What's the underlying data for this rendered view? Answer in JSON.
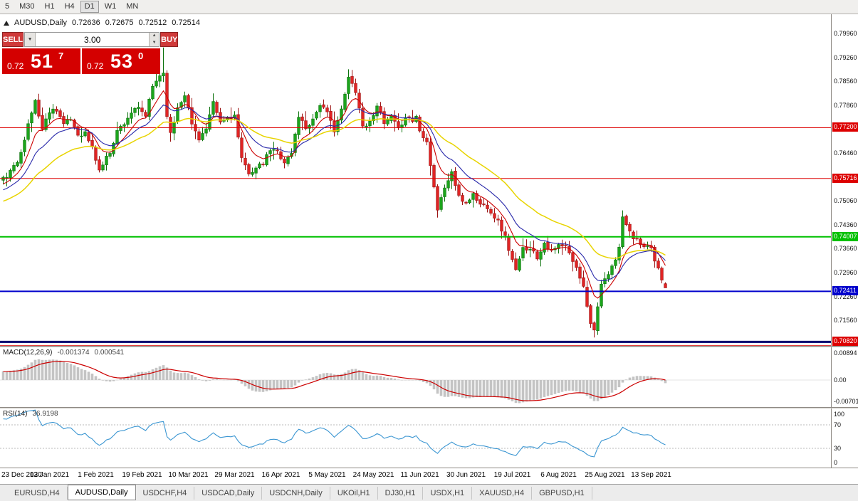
{
  "window": {
    "title": "AUDUSD,Daily"
  },
  "toolbar": {
    "timeframes": [
      {
        "label": "5",
        "active": false
      },
      {
        "label": "M30",
        "active": false
      },
      {
        "label": "H1",
        "active": false
      },
      {
        "label": "H4",
        "active": false
      },
      {
        "label": "D1",
        "active": true
      },
      {
        "label": "W1",
        "active": false
      },
      {
        "label": "MN",
        "active": false
      }
    ]
  },
  "chart_header": {
    "symbol_text": "AUDUSD,Daily",
    "open": "0.72636",
    "high": "0.72675",
    "low": "0.72512",
    "close": "0.72514"
  },
  "trade_panel": {
    "sell_label": "SELL",
    "buy_label": "BUY",
    "volume": "3.00",
    "dropdown_icon": "▼",
    "step_up_icon": "▲",
    "step_down_icon": "▼",
    "sell_price": {
      "base": "0.72",
      "big": "51",
      "sup": "7"
    },
    "buy_price": {
      "base": "0.72",
      "big": "53",
      "sup": "0"
    }
  },
  "colors": {
    "up": "#1ca51c",
    "up_dark": "#0c720c",
    "down": "#e02424",
    "down_dark": "#9c1414",
    "macd_hist": "#c4c4c4",
    "macd_signal": "#cc0000",
    "rsi_line": "#3b96d2",
    "accent_red": "#d40000"
  },
  "chart_data": {
    "type": "candlestick",
    "title": "AUDUSD,Daily",
    "symbol": "AUDUSD",
    "timeframe": "Daily",
    "num_bars": 187,
    "bars_per_label": 13,
    "ylim": [
      0.706,
      0.805
    ],
    "price_axis": {
      "top_price": 0.7996,
      "tick_step": 0.007,
      "ticks": [
        "0.79960",
        "0.79260",
        "0.78560",
        "0.77860",
        "0.77160",
        "0.76460",
        "0.75760",
        "0.75060",
        "0.74360",
        "0.73660",
        "0.72960",
        "0.72260",
        "0.71560"
      ]
    },
    "x_labels": [
      "23 Dec 2020",
      "13 Jan 2021",
      "1 Feb 2021",
      "19 Feb 2021",
      "10 Mar 2021",
      "29 Mar 2021",
      "16 Apr 2021",
      "5 May 2021",
      "24 May 2021",
      "11 Jun 2021",
      "30 Jun 2021",
      "19 Jul 2021",
      "6 Aug 2021",
      "25 Aug 2021",
      "13 Sep 2021"
    ],
    "hlines": [
      {
        "price": 0.772,
        "label": "0.77200",
        "color": "#dd0000",
        "width": 1
      },
      {
        "price": 0.75716,
        "label": "0.75716",
        "color": "#dd0000",
        "width": 1
      },
      {
        "price": 0.74007,
        "label": "0.74007",
        "color": "#00c000",
        "width": 2
      },
      {
        "price": 0.72411,
        "label": "0.72411",
        "color": "#0000cc",
        "width": 2
      },
      {
        "price": 0.7093,
        "label": "",
        "color": "#000070",
        "width": 3
      },
      {
        "price": 0.7082,
        "label": "0.70820",
        "color": "#dd0000",
        "width": 1
      }
    ],
    "moving_averages": [
      {
        "period": 8,
        "color": "#cc0000",
        "width": 1.1
      },
      {
        "period": 16,
        "color": "#2828aa",
        "width": 1.1
      },
      {
        "period": 34,
        "color": "#e8d400",
        "width": 1.5
      }
    ],
    "warmup": {
      "bars": 40,
      "start_price": 0.7395
    },
    "close_waypoints": [
      [
        0,
        0.757
      ],
      [
        2,
        0.759
      ],
      [
        4,
        0.762
      ],
      [
        6,
        0.769
      ],
      [
        9,
        0.78
      ],
      [
        11,
        0.7715
      ],
      [
        13,
        0.777
      ],
      [
        15,
        0.7775
      ],
      [
        17,
        0.773
      ],
      [
        19,
        0.7745
      ],
      [
        21,
        0.77
      ],
      [
        23,
        0.7705
      ],
      [
        25,
        0.766
      ],
      [
        27,
        0.7595
      ],
      [
        30,
        0.765
      ],
      [
        32,
        0.771
      ],
      [
        34,
        0.7735
      ],
      [
        36,
        0.7765
      ],
      [
        38,
        0.7775
      ],
      [
        40,
        0.7755
      ],
      [
        42,
        0.784
      ],
      [
        44,
        0.7875
      ],
      [
        45,
        0.788
      ],
      [
        46,
        0.776
      ],
      [
        47,
        0.77
      ],
      [
        49,
        0.778
      ],
      [
        51,
        0.782
      ],
      [
        53,
        0.773
      ],
      [
        55,
        0.769
      ],
      [
        57,
        0.7715
      ],
      [
        59,
        0.779
      ],
      [
        61,
        0.7735
      ],
      [
        63,
        0.775
      ],
      [
        65,
        0.7755
      ],
      [
        67,
        0.7625
      ],
      [
        69,
        0.759
      ],
      [
        71,
        0.76
      ],
      [
        73,
        0.7615
      ],
      [
        75,
        0.7655
      ],
      [
        77,
        0.765
      ],
      [
        79,
        0.762
      ],
      [
        81,
        0.7645
      ],
      [
        83,
        0.7755
      ],
      [
        85,
        0.772
      ],
      [
        87,
        0.7745
      ],
      [
        89,
        0.779
      ],
      [
        91,
        0.776
      ],
      [
        93,
        0.7715
      ],
      [
        95,
        0.777
      ],
      [
        97,
        0.7865
      ],
      [
        99,
        0.783
      ],
      [
        101,
        0.7725
      ],
      [
        103,
        0.7735
      ],
      [
        105,
        0.779
      ],
      [
        107,
        0.773
      ],
      [
        109,
        0.775
      ],
      [
        111,
        0.7715
      ],
      [
        113,
        0.7755
      ],
      [
        115,
        0.774
      ],
      [
        116,
        0.7755
      ],
      [
        117,
        0.771
      ],
      [
        119,
        0.7685
      ],
      [
        120,
        0.761
      ],
      [
        121,
        0.755
      ],
      [
        122,
        0.748
      ],
      [
        124,
        0.7545
      ],
      [
        126,
        0.759
      ],
      [
        128,
        0.7515
      ],
      [
        130,
        0.75
      ],
      [
        132,
        0.7525
      ],
      [
        134,
        0.7495
      ],
      [
        136,
        0.749
      ],
      [
        139,
        0.7445
      ],
      [
        141,
        0.74
      ],
      [
        142,
        0.7365
      ],
      [
        144,
        0.73
      ],
      [
        146,
        0.7365
      ],
      [
        148,
        0.737
      ],
      [
        150,
        0.734
      ],
      [
        152,
        0.7385
      ],
      [
        154,
        0.7355
      ],
      [
        156,
        0.7375
      ],
      [
        158,
        0.737
      ],
      [
        160,
        0.733
      ],
      [
        163,
        0.726
      ],
      [
        165,
        0.7145
      ],
      [
        166,
        0.7135
      ],
      [
        168,
        0.7255
      ],
      [
        170,
        0.729
      ],
      [
        171,
        0.731
      ],
      [
        172,
        0.734
      ],
      [
        173,
        0.737
      ],
      [
        174,
        0.7455
      ],
      [
        175,
        0.744
      ],
      [
        176,
        0.741
      ],
      [
        177,
        0.74
      ],
      [
        178,
        0.739
      ],
      [
        180,
        0.7365
      ],
      [
        182,
        0.737
      ],
      [
        183,
        0.733
      ],
      [
        184,
        0.731
      ],
      [
        185,
        0.728
      ],
      [
        186,
        0.7251
      ]
    ],
    "overrides": [
      {
        "i": 45,
        "high": 0.7955
      },
      {
        "i": 97,
        "high": 0.7891
      },
      {
        "i": 166,
        "low": 0.7106
      },
      {
        "i": 174,
        "high": 0.7478
      }
    ],
    "last_bar": {
      "open": 0.72636,
      "high": 0.72675,
      "low": 0.72512,
      "close": 0.72514
    }
  },
  "indicators": {
    "macd": {
      "name": "MACD(12,26,9)",
      "value_main": "-0.001374",
      "value_signal": "0.000541",
      "fast": 12,
      "slow": 26,
      "signal": 9,
      "axis_ticks": [
        {
          "label": "0.00894",
          "value": 0.00894
        },
        {
          "label": "0.00",
          "value": 0
        },
        {
          "label": "-0.00701",
          "value": -0.00701
        }
      ]
    },
    "rsi": {
      "name": "RSI(14)",
      "value": "36.9198",
      "period": 14,
      "levels": [
        70,
        30
      ],
      "axis_ticks": [
        {
          "label": "100",
          "value": 100
        },
        {
          "label": "70",
          "value": 70
        },
        {
          "label": "30",
          "value": 30
        },
        {
          "label": "0",
          "value": 0
        }
      ]
    }
  },
  "tabs": [
    {
      "label": "EURUSD,H4",
      "active": false
    },
    {
      "label": "AUDUSD,Daily",
      "active": true
    },
    {
      "label": "USDCHF,H4",
      "active": false
    },
    {
      "label": "USDCAD,Daily",
      "active": false
    },
    {
      "label": "USDCNH,Daily",
      "active": false
    },
    {
      "label": "UKOil,H1",
      "active": false
    },
    {
      "label": "DJ30,H1",
      "active": false
    },
    {
      "label": "USDX,H1",
      "active": false
    },
    {
      "label": "XAUUSD,H4",
      "active": false
    },
    {
      "label": "GBPUSD,H1",
      "active": false
    }
  ]
}
